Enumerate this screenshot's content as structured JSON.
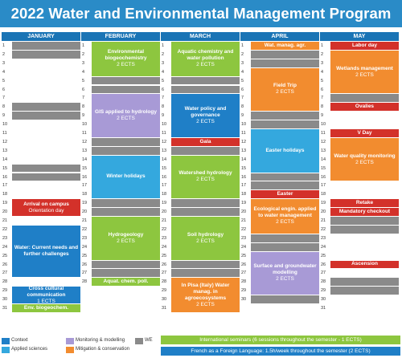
{
  "title": "2022 Water and Environmental Management Program",
  "colors": {
    "header": "#2a8bc7",
    "month_head": "#1a74b5",
    "context": "#1f7fc7",
    "applied": "#34a8de",
    "monitoring": "#a89ad6",
    "mitigation": "#f28c2f",
    "green": "#8dc63f",
    "we": "#8a8a8a",
    "red": "#d3312a"
  },
  "months": [
    {
      "name": "JANUARY",
      "days": 31,
      "blocks": [
        {
          "from": 19,
          "to": 20,
          "color": "red",
          "title": "Arrival on campus",
          "sub": "Orientation day"
        },
        {
          "from": 22,
          "to": 27,
          "color": "context",
          "title": "Water: Current needs and further challenges",
          "sub": ""
        },
        {
          "from": 29,
          "to": 30,
          "color": "context",
          "title": "Cross cultural communication",
          "sub": "1 ECTS"
        },
        {
          "from": 31,
          "to": 31,
          "color": "green",
          "title": "Env. biogeochem.",
          "sub": ""
        }
      ],
      "we": [
        1,
        2,
        8,
        9,
        15,
        16,
        22,
        23,
        29,
        30
      ]
    },
    {
      "name": "FEBRUARY",
      "days": 28,
      "blocks": [
        {
          "from": 1,
          "to": 4,
          "color": "green",
          "title": "Environmental biogeochemistry",
          "sub": "2 ECTS"
        },
        {
          "from": 7,
          "to": 11,
          "color": "monitoring",
          "title": "GIS applied to hydrology",
          "sub": "2 ECTS"
        },
        {
          "from": 14,
          "to": 18,
          "color": "applied",
          "title": "Winter holidays",
          "sub": ""
        },
        {
          "from": 21,
          "to": 25,
          "color": "green",
          "title": "Hydrogeology",
          "sub": "2 ECTS"
        },
        {
          "from": 28,
          "to": 28,
          "color": "green",
          "title": "Aquat. chem. poll.",
          "sub": ""
        }
      ],
      "we": [
        5,
        6,
        12,
        13,
        19,
        20,
        26,
        27
      ]
    },
    {
      "name": "MARCH",
      "days": 31,
      "blocks": [
        {
          "from": 1,
          "to": 4,
          "color": "green",
          "title": "Aquatic chemistry and water pollution",
          "sub": "2 ECTS"
        },
        {
          "from": 7,
          "to": 11,
          "color": "context",
          "title": "Water policy and governance",
          "sub": "2 ECTS"
        },
        {
          "from": 12,
          "to": 12,
          "color": "red",
          "title": "Gala",
          "sub": ""
        },
        {
          "from": 14,
          "to": 18,
          "color": "green",
          "title": "Watershed hydrology",
          "sub": "2 ECTS"
        },
        {
          "from": 21,
          "to": 25,
          "color": "green",
          "title": "Soil hydrology",
          "sub": "2 ECTS"
        },
        {
          "from": 28,
          "to": 31,
          "color": "mitigation",
          "title": "In Pisa (Italy) Water manag. in agroecosystems",
          "sub": "2 ECTS"
        }
      ],
      "we": [
        5,
        6,
        12,
        13,
        19,
        20,
        26,
        27
      ]
    },
    {
      "name": "APRIL",
      "days": 30,
      "blocks": [
        {
          "from": 1,
          "to": 1,
          "color": "mitigation",
          "title": "Wat. manag. agr.",
          "sub": ""
        },
        {
          "from": 4,
          "to": 8,
          "color": "mitigation",
          "title": "Field Trip",
          "sub": "2 ECTS"
        },
        {
          "from": 11,
          "to": 15,
          "color": "applied",
          "title": "Easter holidays",
          "sub": ""
        },
        {
          "from": 18,
          "to": 18,
          "color": "red",
          "title": "Easter",
          "sub": ""
        },
        {
          "from": 19,
          "to": 22,
          "color": "mitigation",
          "title": "Ecological engin. applied to water management",
          "sub": "2 ECTS"
        },
        {
          "from": 25,
          "to": 29,
          "color": "monitoring",
          "title": "Surface and groundwater modelling",
          "sub": "2 ECTS"
        }
      ],
      "we": [
        2,
        3,
        9,
        10,
        16,
        17,
        23,
        24,
        30
      ]
    },
    {
      "name": "MAY",
      "days": 31,
      "blocks": [
        {
          "from": 1,
          "to": 1,
          "color": "red",
          "title": "Labor day",
          "sub": ""
        },
        {
          "from": 2,
          "to": 6,
          "color": "mitigation",
          "title": "Wetlands management",
          "sub": "2 ECTS"
        },
        {
          "from": 8,
          "to": 8,
          "color": "red",
          "title": "Ovalies",
          "sub": ""
        },
        {
          "from": 11,
          "to": 11,
          "color": "red",
          "title": "V Day",
          "sub": ""
        },
        {
          "from": 12,
          "to": 16,
          "color": "mitigation",
          "title": "Water quality monitoring",
          "sub": "2 ECTS"
        },
        {
          "from": 19,
          "to": 19,
          "color": "red",
          "title": "Retake",
          "sub": ""
        },
        {
          "from": 20,
          "to": 20,
          "color": "red",
          "title": "Mandatory checkout",
          "sub": ""
        },
        {
          "from": 26,
          "to": 26,
          "color": "red",
          "title": "Ascension",
          "sub": ""
        }
      ],
      "we": [
        1,
        7,
        8,
        14,
        15,
        21,
        22,
        28,
        29
      ]
    }
  ],
  "legend": [
    {
      "label": "Context",
      "color": "context"
    },
    {
      "label": "Applied sciences",
      "color": "applied"
    },
    {
      "label": "Monitoring & modelling",
      "color": "monitoring"
    },
    {
      "label": "Mitigation & conservation",
      "color": "mitigation"
    },
    {
      "label": "WE",
      "color": "we"
    }
  ],
  "bars": [
    {
      "text": "International seminars (6 sessions throughout the semester - 1 ECTS)",
      "color": "green"
    },
    {
      "text": "French as a Foreign Language: 1.5h/week throughout the semester (2 ECTS)",
      "color": "context"
    }
  ]
}
